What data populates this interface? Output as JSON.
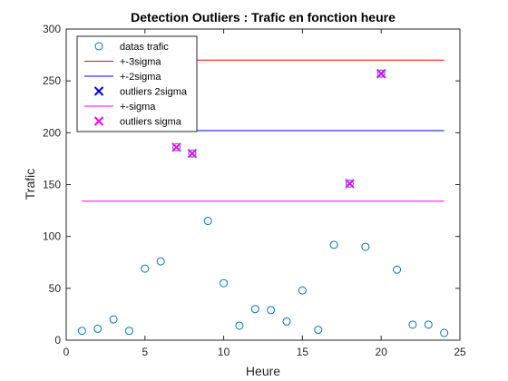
{
  "chart_data": {
    "type": "scatter",
    "title": "Detection Outliers : Trafic en fonction heure",
    "xlabel": "Heure",
    "ylabel": "Trafic",
    "xlim": [
      0,
      25
    ],
    "ylim": [
      0,
      300
    ],
    "xticks": [
      0,
      5,
      10,
      15,
      20,
      25
    ],
    "yticks": [
      0,
      50,
      100,
      150,
      200,
      250,
      300
    ],
    "grid": false,
    "legend_position": "top-left",
    "series": [
      {
        "name": "datas trafic",
        "kind": "scatter",
        "marker": "circle",
        "color": "#0072BD",
        "x": [
          1,
          2,
          3,
          4,
          5,
          6,
          7,
          8,
          9,
          10,
          11,
          12,
          13,
          14,
          15,
          16,
          17,
          18,
          19,
          20,
          21,
          22,
          23,
          24
        ],
        "y": [
          9,
          11,
          20,
          9,
          69,
          76,
          186,
          180,
          115,
          55,
          14,
          30,
          29,
          18,
          48,
          10,
          92,
          151,
          90,
          257,
          68,
          15,
          15,
          7
        ]
      },
      {
        "name": "+-3sigma",
        "kind": "hline",
        "color": "#FF0000",
        "x": [
          1,
          24
        ],
        "y": [
          270,
          270
        ]
      },
      {
        "name": "+-2sigma",
        "kind": "hline",
        "color": "#0000FF",
        "x": [
          1,
          24
        ],
        "y": [
          202,
          202
        ]
      },
      {
        "name": "outliers 2sigma",
        "kind": "scatter",
        "marker": "x",
        "color": "#0000FF",
        "x": [
          20
        ],
        "y": [
          257
        ]
      },
      {
        "name": "+-sigma",
        "kind": "hline",
        "color": "#FF00FF",
        "x": [
          1,
          24
        ],
        "y": [
          134,
          134
        ]
      },
      {
        "name": "outliers sigma",
        "kind": "scatter",
        "marker": "x",
        "color": "#FF00FF",
        "x": [
          7,
          8,
          18,
          20
        ],
        "y": [
          186,
          180,
          151,
          257
        ]
      }
    ]
  }
}
